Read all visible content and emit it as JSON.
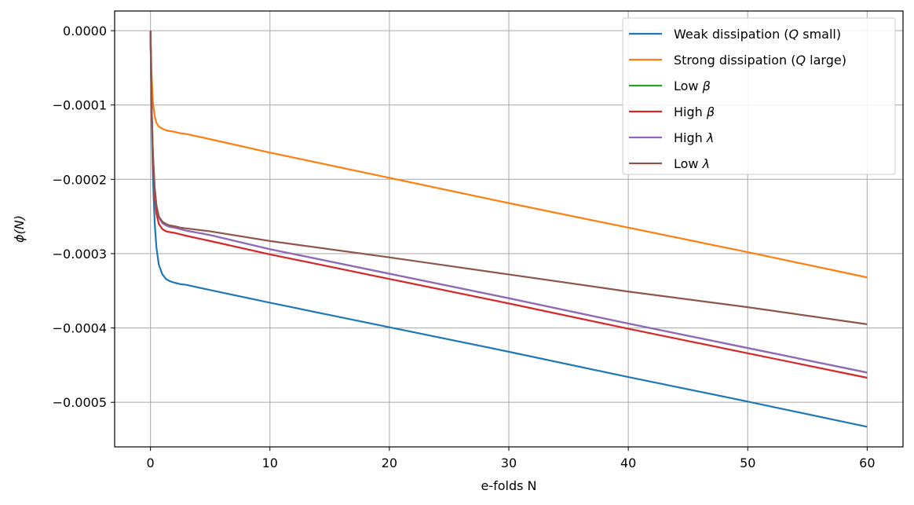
{
  "chart_data": {
    "type": "line",
    "title": "",
    "xlabel": "e-folds N",
    "ylabel": "ϕ(N)",
    "xlim": [
      -3,
      63
    ],
    "ylim": [
      -0.00056,
      2.65e-05
    ],
    "grid": true,
    "legend_position": "upper-right",
    "x_ticks": [
      0,
      10,
      20,
      30,
      40,
      50,
      60
    ],
    "x_tick_labels": [
      "0",
      "10",
      "20",
      "30",
      "40",
      "50",
      "60"
    ],
    "y_ticks": [
      0.0,
      -0.0001,
      -0.0002,
      -0.0003,
      -0.0004,
      -0.0005
    ],
    "y_tick_labels": [
      "0.0000",
      "−0.0001",
      "−0.0002",
      "−0.0003",
      "−0.0004",
      "−0.0005"
    ],
    "series": [
      {
        "name": "Weak dissipation (Q small)",
        "legend": {
          "pre": "Weak dissipation (",
          "sym": "Q",
          "post": " small)"
        },
        "color": "#1f77b4",
        "x": [
          0,
          0.1,
          0.2,
          0.35,
          0.5,
          0.7,
          1.0,
          1.3,
          1.6,
          2.0,
          2.5,
          3,
          5,
          10,
          20,
          30,
          40,
          50,
          60
        ],
        "y": [
          0,
          -0.00012,
          -0.000195,
          -0.000258,
          -0.000292,
          -0.000315,
          -0.000328,
          -0.000334,
          -0.000337,
          -0.000339,
          -0.000341,
          -0.000342,
          -0.000349,
          -0.000366,
          -0.000399,
          -0.000432,
          -0.000466,
          -0.000499,
          -0.000533
        ]
      },
      {
        "name": "Strong dissipation (Q large)",
        "legend": {
          "pre": "Strong dissipation (",
          "sym": "Q",
          "post": " large)"
        },
        "color": "#ff7f0e",
        "x": [
          0,
          0.1,
          0.2,
          0.35,
          0.5,
          0.7,
          1.0,
          1.3,
          1.6,
          2.0,
          2.5,
          3,
          5,
          10,
          20,
          30,
          40,
          50,
          60
        ],
        "y": [
          0,
          -6.2e-05,
          -9.5e-05,
          -0.000115,
          -0.000124,
          -0.000129,
          -0.000132,
          -0.000134,
          -0.000135,
          -0.000136,
          -0.000138,
          -0.000139,
          -0.000146,
          -0.000164,
          -0.000198,
          -0.000232,
          -0.000265,
          -0.000298,
          -0.000332
        ]
      },
      {
        "name": "Low β",
        "legend": {
          "pre": "Low ",
          "sym": "β",
          "post": ""
        },
        "color": "#2ca02c",
        "x": [
          0,
          0.1,
          0.2,
          0.35,
          0.5,
          0.7,
          1.0,
          1.3,
          1.6,
          2.0,
          2.5,
          3,
          5,
          10,
          20,
          30,
          40,
          50,
          60
        ],
        "y": [
          0,
          -0.000105,
          -0.000165,
          -0.000212,
          -0.000236,
          -0.000251,
          -0.000259,
          -0.000262,
          -0.000264,
          -0.000265,
          -0.000267,
          -0.000269,
          -0.000275,
          -0.000294,
          -0.000327,
          -0.00036,
          -0.000394,
          -0.000427,
          -0.00046
        ]
      },
      {
        "name": "High β",
        "legend": {
          "pre": "High ",
          "sym": "β",
          "post": ""
        },
        "color": "#d62728",
        "x": [
          0,
          0.1,
          0.2,
          0.35,
          0.5,
          0.7,
          1.0,
          1.3,
          1.6,
          2.0,
          2.5,
          3,
          5,
          10,
          20,
          30,
          40,
          50,
          60
        ],
        "y": [
          0,
          -0.00011,
          -0.000172,
          -0.000222,
          -0.000246,
          -0.00026,
          -0.000267,
          -0.00027,
          -0.000271,
          -0.000272,
          -0.000274,
          -0.000276,
          -0.000283,
          -0.000301,
          -0.000334,
          -0.000367,
          -0.000401,
          -0.000434,
          -0.000467
        ]
      },
      {
        "name": "High λ",
        "legend": {
          "pre": "High ",
          "sym": "λ",
          "post": ""
        },
        "color": "#9467bd",
        "x": [
          0,
          0.1,
          0.2,
          0.35,
          0.5,
          0.7,
          1.0,
          1.3,
          1.6,
          2.0,
          2.5,
          3,
          5,
          10,
          20,
          30,
          40,
          50,
          60
        ],
        "y": [
          0,
          -0.000105,
          -0.000165,
          -0.000212,
          -0.000236,
          -0.000251,
          -0.000259,
          -0.000262,
          -0.000264,
          -0.000265,
          -0.000267,
          -0.000269,
          -0.000275,
          -0.000294,
          -0.000327,
          -0.00036,
          -0.000394,
          -0.000427,
          -0.00046
        ]
      },
      {
        "name": "Low λ",
        "legend": {
          "pre": "Low ",
          "sym": "λ",
          "post": ""
        },
        "color": "#8c564b",
        "x": [
          0,
          0.1,
          0.2,
          0.35,
          0.5,
          0.7,
          1.0,
          1.3,
          1.6,
          2.0,
          2.5,
          3,
          5,
          10,
          20,
          30,
          40,
          50,
          60
        ],
        "y": [
          0,
          -0.000104,
          -0.000164,
          -0.000211,
          -0.000235,
          -0.00025,
          -0.000257,
          -0.00026,
          -0.000262,
          -0.000263,
          -0.000265,
          -0.000266,
          -0.00027,
          -0.000283,
          -0.000305,
          -0.000328,
          -0.000351,
          -0.000372,
          -0.000395
        ]
      }
    ]
  }
}
